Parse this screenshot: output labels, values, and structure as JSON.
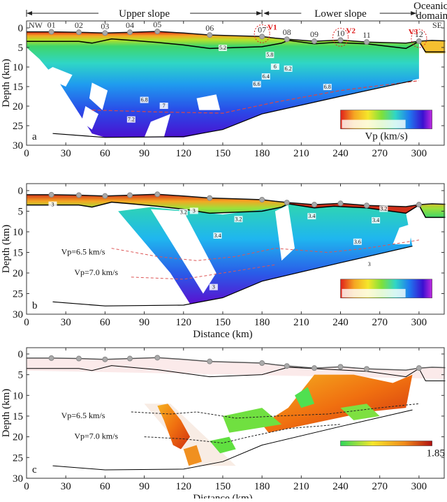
{
  "chart_data": [
    {
      "type": "heatmap",
      "panel_label": "a",
      "xlabel": "",
      "ylabel": "Depth (km)",
      "xlim": [
        0,
        320
      ],
      "ylim": [
        30,
        0
      ],
      "xticks": [
        "0",
        "30",
        "60",
        "90",
        "120",
        "150",
        "180",
        "210",
        "240",
        "270",
        "300"
      ],
      "yticks": [
        "0",
        "5",
        "10",
        "15",
        "20",
        "25",
        "30"
      ],
      "header": {
        "upper_slope": "Upper slope",
        "lower_slope": "Lower slope",
        "oceanic_domain_line1": "Oceanic",
        "oceanic_domain_line2": "domain",
        "nw": "NW",
        "se": "SE"
      },
      "stations": [
        {
          "label": "01",
          "x": 19
        },
        {
          "label": "02",
          "x": 40
        },
        {
          "label": "03",
          "x": 60
        },
        {
          "label": "04",
          "x": 79
        },
        {
          "label": "05",
          "x": 100
        },
        {
          "label": "06",
          "x": 140
        },
        {
          "label": "07",
          "x": 180
        },
        {
          "label": "08",
          "x": 199
        },
        {
          "label": "09",
          "x": 220
        },
        {
          "label": "10",
          "x": 240
        },
        {
          "label": "11",
          "x": 260
        },
        {
          "label": "12",
          "x": 300
        }
      ],
      "volcanoes": [
        {
          "label": "V1",
          "x": 180
        },
        {
          "label": "V2",
          "x": 240
        },
        {
          "label": "V3",
          "x": 300
        }
      ],
      "contour_labels": [
        {
          "text": "5.2",
          "x": 150,
          "y": 5.2
        },
        {
          "text": "5.8",
          "x": 186,
          "y": 7
        },
        {
          "text": "6",
          "x": 190,
          "y": 10
        },
        {
          "text": "6.2",
          "x": 200,
          "y": 10.5
        },
        {
          "text": "6.4",
          "x": 183,
          "y": 12.5
        },
        {
          "text": "6.6",
          "x": 176,
          "y": 14.5
        },
        {
          "text": "6.8",
          "x": 230,
          "y": 15.2
        },
        {
          "text": "6.8",
          "x": 90,
          "y": 18.5
        },
        {
          "text": "7",
          "x": 105,
          "y": 20
        },
        {
          "text": "7.2",
          "x": 80,
          "y": 23.5
        }
      ],
      "colorbar": {
        "label": "Vp (km/s)",
        "colors": [
          "#e0201a",
          "#f5a623",
          "#f5e62a",
          "#7ee03a",
          "#2fd6a6",
          "#1fb6ef",
          "#2a5ae8",
          "#3a10d0",
          "#c02ae0"
        ]
      }
    },
    {
      "type": "heatmap",
      "panel_label": "b",
      "xlabel": "Distance (km)",
      "ylabel": "Depth (km)",
      "xlim": [
        0,
        320
      ],
      "ylim": [
        30,
        0
      ],
      "xticks": [
        "0",
        "30",
        "60",
        "90",
        "120",
        "150",
        "180",
        "210",
        "240",
        "270",
        "300"
      ],
      "yticks": [
        "0",
        "5",
        "10",
        "15",
        "20",
        "25",
        "30"
      ],
      "annotations": [
        {
          "text": "Vp=6.5 km/s"
        },
        {
          "text": "Vp=7.0 km/s"
        }
      ],
      "contour_labels": [
        {
          "text": "3",
          "x": 20,
          "y": 3.5
        },
        {
          "text": "3.2",
          "x": 120,
          "y": 5.3
        },
        {
          "text": "3",
          "x": 128,
          "y": 5
        },
        {
          "text": "3.2",
          "x": 162,
          "y": 7
        },
        {
          "text": "3.4",
          "x": 146,
          "y": 11
        },
        {
          "text": "3.4",
          "x": 218,
          "y": 6.3
        },
        {
          "text": "3.4",
          "x": 267,
          "y": 7.3
        },
        {
          "text": "3.6",
          "x": 253,
          "y": 12.5
        },
        {
          "text": "3.2",
          "x": 273,
          "y": 4.5
        },
        {
          "text": "3",
          "x": 262,
          "y": 18
        },
        {
          "text": "3",
          "x": 143,
          "y": 23.5
        }
      ],
      "colorbar": {
        "colors": [
          "#e0201a",
          "#f5a623",
          "#7ee03a",
          "#2fd6a6",
          "#1fb6ef",
          "#2a5ae8"
        ]
      }
    },
    {
      "type": "heatmap",
      "panel_label": "c",
      "xlabel": "Distance (km)",
      "ylabel": "Depth (km)",
      "xlim": [
        0,
        320
      ],
      "ylim": [
        30,
        0
      ],
      "xticks": [
        "0",
        "30",
        "60",
        "90",
        "120",
        "150",
        "180",
        "210",
        "240",
        "270",
        "300"
      ],
      "yticks": [
        "0",
        "5",
        "10",
        "15",
        "20",
        "25",
        "30"
      ],
      "annotations": [
        {
          "text": "Vp=6.5 km/s"
        },
        {
          "text": "Vp=7.0 km/s"
        }
      ],
      "colorbar": {
        "max_label": "1.85",
        "colors": [
          "#2fd65a",
          "#f5e62a",
          "#f08a1a",
          "#b01010"
        ]
      }
    }
  ]
}
